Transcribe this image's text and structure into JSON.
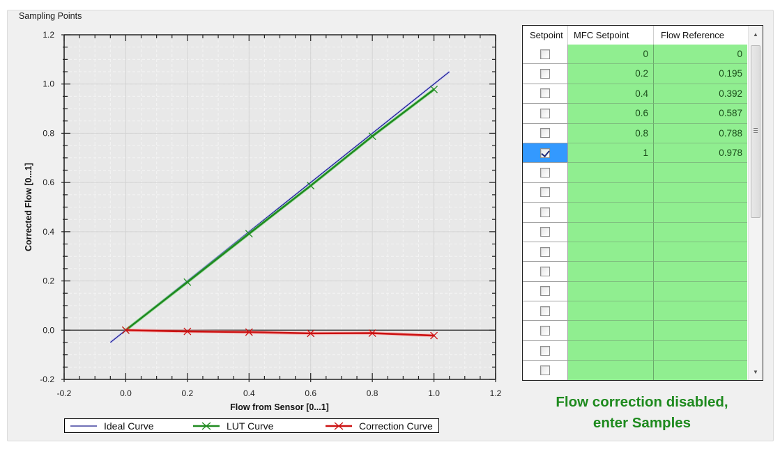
{
  "groupbox": {
    "title": "Sampling Points"
  },
  "chart_data": {
    "type": "line",
    "title": "",
    "xlabel": "Flow from Sensor [0...1]",
    "ylabel": "Corrected Flow [0...1]",
    "xlim": [
      -0.2,
      1.2
    ],
    "ylim": [
      -0.2,
      1.2
    ],
    "x_ticks": [
      "-0.2",
      "0.0",
      "0.2",
      "0.4",
      "0.6",
      "0.8",
      "1.0",
      "1.2"
    ],
    "y_ticks": [
      "1.2",
      "1.0",
      "0.8",
      "0.6",
      "0.4",
      "0.2",
      "0.0",
      "-0.2"
    ],
    "grid": true,
    "legend_position": "bottom",
    "series": [
      {
        "name": "Ideal Curve",
        "color": "#1a1a8c",
        "marker": "none",
        "x": [
          -0.05,
          1.05
        ],
        "y": [
          -0.05,
          1.05
        ]
      },
      {
        "name": "LUT Curve",
        "color": "#1f8a1f",
        "marker": "x",
        "x": [
          0,
          0.2,
          0.4,
          0.6,
          0.8,
          1.0
        ],
        "y": [
          0,
          0.195,
          0.392,
          0.587,
          0.788,
          0.978
        ]
      },
      {
        "name": "Correction Curve",
        "color": "#cc1111",
        "marker": "x",
        "x": [
          0,
          0.2,
          0.4,
          0.6,
          0.8,
          1.0
        ],
        "y": [
          0,
          -0.005,
          -0.008,
          -0.013,
          -0.012,
          -0.022
        ]
      }
    ]
  },
  "legend": {
    "items": [
      {
        "label": "Ideal Curve",
        "color": "#1a1a8c",
        "marker": false
      },
      {
        "label": "LUT Curve",
        "color": "#1f8a1f",
        "marker": true
      },
      {
        "label": "Correction Curve",
        "color": "#cc1111",
        "marker": true
      }
    ]
  },
  "table": {
    "columns": [
      "Setpoint",
      "MFC Setpoint",
      "Flow Reference"
    ],
    "rows": [
      {
        "checked": false,
        "mfc": "0",
        "flow": "0",
        "selected": false
      },
      {
        "checked": false,
        "mfc": "0.2",
        "flow": "0.195",
        "selected": false
      },
      {
        "checked": false,
        "mfc": "0.4",
        "flow": "0.392",
        "selected": false
      },
      {
        "checked": false,
        "mfc": "0.6",
        "flow": "0.587",
        "selected": false
      },
      {
        "checked": false,
        "mfc": "0.8",
        "flow": "0.788",
        "selected": false
      },
      {
        "checked": true,
        "mfc": "1",
        "flow": "0.978",
        "selected": true
      },
      {
        "checked": false,
        "mfc": "",
        "flow": "",
        "selected": false
      },
      {
        "checked": false,
        "mfc": "",
        "flow": "",
        "selected": false
      },
      {
        "checked": false,
        "mfc": "",
        "flow": "",
        "selected": false
      },
      {
        "checked": false,
        "mfc": "",
        "flow": "",
        "selected": false
      },
      {
        "checked": false,
        "mfc": "",
        "flow": "",
        "selected": false
      },
      {
        "checked": false,
        "mfc": "",
        "flow": "",
        "selected": false
      },
      {
        "checked": false,
        "mfc": "",
        "flow": "",
        "selected": false
      },
      {
        "checked": false,
        "mfc": "",
        "flow": "",
        "selected": false
      },
      {
        "checked": false,
        "mfc": "",
        "flow": "",
        "selected": false
      },
      {
        "checked": false,
        "mfc": "",
        "flow": "",
        "selected": false
      },
      {
        "checked": false,
        "mfc": "",
        "flow": "",
        "selected": false
      }
    ],
    "scroll_up_icon": "▲",
    "scroll_down_icon": "▼"
  },
  "status": {
    "line1": "Flow correction disabled,",
    "line2": "enter Samples",
    "color": "#1e8a1e"
  }
}
